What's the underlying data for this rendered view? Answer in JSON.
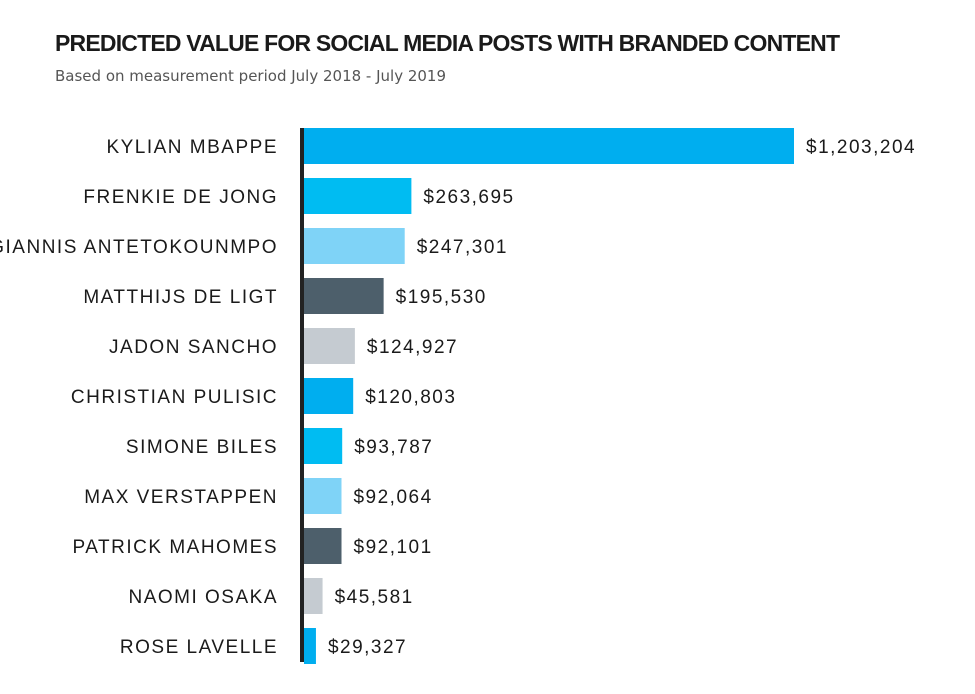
{
  "chart_data": {
    "type": "bar",
    "orientation": "horizontal",
    "title": "PREDICTED VALUE FOR SOCIAL MEDIA POSTS WITH BRANDED CONTENT",
    "subtitle": "Based on measurement period July 2018 - July 2019",
    "categories": [
      "KYLIAN MBAPPE",
      "FRENKIE DE JONG",
      "GIANNIS ANTETOKOUNMPO",
      "MATTHIJS DE LIGT",
      "JADON SANCHO",
      "CHRISTIAN PULISIC",
      "SIMONE BILES",
      "MAX VERSTAPPEN",
      "PATRICK MAHOMES",
      "NAOMI OSAKA",
      "ROSE LAVELLE"
    ],
    "values": [
      1203204,
      263695,
      247301,
      195530,
      124927,
      120803,
      93787,
      92064,
      92101,
      45581,
      29327
    ],
    "data_labels": [
      "$1,203,204",
      "$263,695",
      "$247,301",
      "$195,530",
      "$124,927",
      "$120,803",
      "$93,787",
      "$92,064",
      "$92,101",
      "$45,581",
      "$29,327"
    ],
    "colors": [
      "#00aeef",
      "#00bcf2",
      "#7fd3f7",
      "#4d5f6b",
      "#c5cbd1"
    ],
    "grid": false,
    "xlim": [
      0,
      1203204
    ]
  }
}
